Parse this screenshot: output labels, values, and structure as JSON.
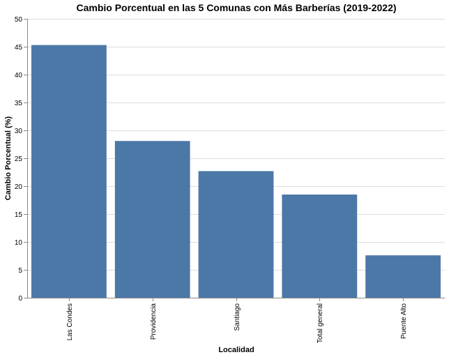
{
  "chart_data": {
    "type": "bar",
    "title": "Cambio Porcentual en las 5 Comunas con Más Barberías (2019-2022)",
    "xlabel": "Localidad",
    "ylabel": "Cambio Porcentual (%)",
    "categories": [
      "Las Condes",
      "Providencia",
      "Santiago",
      "Total general",
      "Puente Alto"
    ],
    "values": [
      45.3,
      28.1,
      22.7,
      18.5,
      7.6
    ],
    "ylim": [
      0,
      50
    ],
    "yticks": [
      0,
      5,
      10,
      15,
      20,
      25,
      30,
      35,
      40,
      45,
      50
    ],
    "grid": true,
    "bar_color": "#4c78a8"
  }
}
